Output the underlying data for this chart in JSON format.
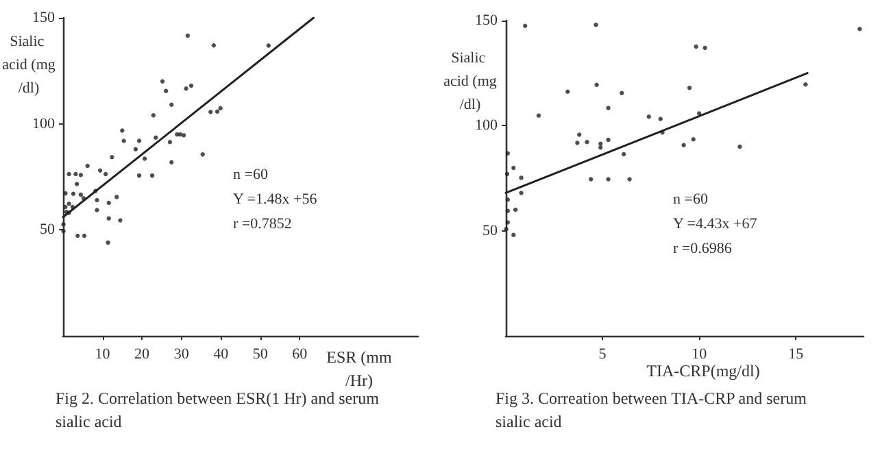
{
  "chart_data": [
    {
      "type": "scatter",
      "title": "Fig 2. Correlation between ESR(1 Hr) and serum sialic acid",
      "xlabel": "ESR (mm/Hr)",
      "ylabel": "Sialic acid (mg/dl)",
      "annotations": [
        "n =60",
        "Y =1.48x +56",
        "r =0.7852"
      ],
      "xlim": [
        0,
        90
      ],
      "xticks": [
        10,
        20,
        30,
        40,
        50,
        60
      ],
      "ylim": [
        0,
        150
      ],
      "yticks": [
        50,
        100,
        150
      ],
      "grid": false,
      "marker": "circle",
      "series": [
        {
          "type": "scatter",
          "color": "#222222",
          "x": [
            31.6,
            38.2,
            52.1,
            25.2,
            26.1,
            32.5,
            31.2,
            27.5,
            22.9,
            37.4,
            39.1,
            39.9,
            15,
            15.4,
            19.3,
            23.5,
            28.9,
            29.7,
            30.6,
            27.1,
            18.4,
            20.7,
            27.5,
            35.4,
            12.4,
            6.2,
            9.4,
            10.8,
            19.3,
            22.6,
            1.5,
            3.2,
            4.5,
            3.5,
            0.6,
            2.6,
            4.5,
            8.2,
            13.6,
            5.2,
            1.5,
            2.4,
            0.6,
            1.5,
            8.6,
            11.6,
            8.6,
            11.6,
            14.5,
            0.1,
            0.1,
            3.7,
            5.4,
            11.4,
            0.9
          ],
          "values": [
            141.6,
            137,
            136.9,
            120,
            115.5,
            118,
            116.6,
            109,
            104,
            105.6,
            105.8,
            107.3,
            96.8,
            92,
            92,
            93.5,
            95,
            95,
            94.6,
            91.4,
            88,
            83.6,
            81.9,
            85.6,
            84.3,
            80.2,
            78,
            76.3,
            75.6,
            75.6,
            76.3,
            76.3,
            75.9,
            71.6,
            67.2,
            67,
            66.6,
            68.3,
            65.5,
            64.9,
            62.3,
            60.8,
            60.8,
            58,
            64,
            62.7,
            59.3,
            55.4,
            54.5,
            52.6,
            49.4,
            47.2,
            47.2,
            44,
            58.4
          ]
        },
        {
          "type": "line",
          "color": "#222222",
          "marker": "none",
          "line_style": "solid",
          "x": [
            0,
            63.5
          ],
          "values": [
            56,
            150
          ]
        }
      ]
    },
    {
      "type": "scatter",
      "title": "Fig 3. Correation between TIA-CRP and serum sialic acid",
      "xlabel": "TIA-CRP(mg/dl)",
      "ylabel": "Sialic acid (mg/dl)",
      "annotations": [
        "n =60",
        "Y =4.43x +67",
        "r =0.6986"
      ],
      "xlim": [
        0,
        18.5
      ],
      "xticks": [
        5,
        10,
        15
      ],
      "ylim": [
        0,
        150
      ],
      "yticks": [
        50,
        100,
        150
      ],
      "grid": false,
      "marker": "circle",
      "series": [
        {
          "type": "scatter",
          "color": "#222222",
          "x": [
            1.0,
            4.66,
            9.84,
            10.3,
            4.7,
            3.2,
            6.0,
            9.5,
            5.3,
            1.7,
            7.4,
            8.0,
            10.0,
            3.8,
            3.7,
            4.2,
            4.9,
            4.9,
            5.3,
            8.1,
            9.2,
            9.7,
            6.1,
            4.4,
            5.3,
            6.4,
            0.1,
            0.4,
            0.07,
            0.8,
            0.8,
            0.1,
            0.5,
            0.1,
            0.1,
            0.4,
            0.02,
            18.3,
            15.5,
            12.1
          ],
          "values": [
            147.5,
            148,
            137.6,
            137,
            119.4,
            116.2,
            115.5,
            118,
            108.4,
            104.8,
            104.3,
            103.2,
            105.8,
            95.7,
            91.8,
            92.2,
            91.4,
            89.6,
            93.3,
            96.8,
            90.7,
            93.5,
            86.4,
            74.5,
            74.5,
            74.5,
            86.8,
            79.9,
            77,
            75.2,
            68,
            64.8,
            60,
            59.4,
            54,
            48,
            50.8,
            146,
            119.6,
            90
          ]
        },
        {
          "type": "line",
          "color": "#222222",
          "marker": "none",
          "line_style": "solid",
          "x": [
            0,
            15.6
          ],
          "values": [
            68,
            125
          ]
        }
      ]
    }
  ]
}
